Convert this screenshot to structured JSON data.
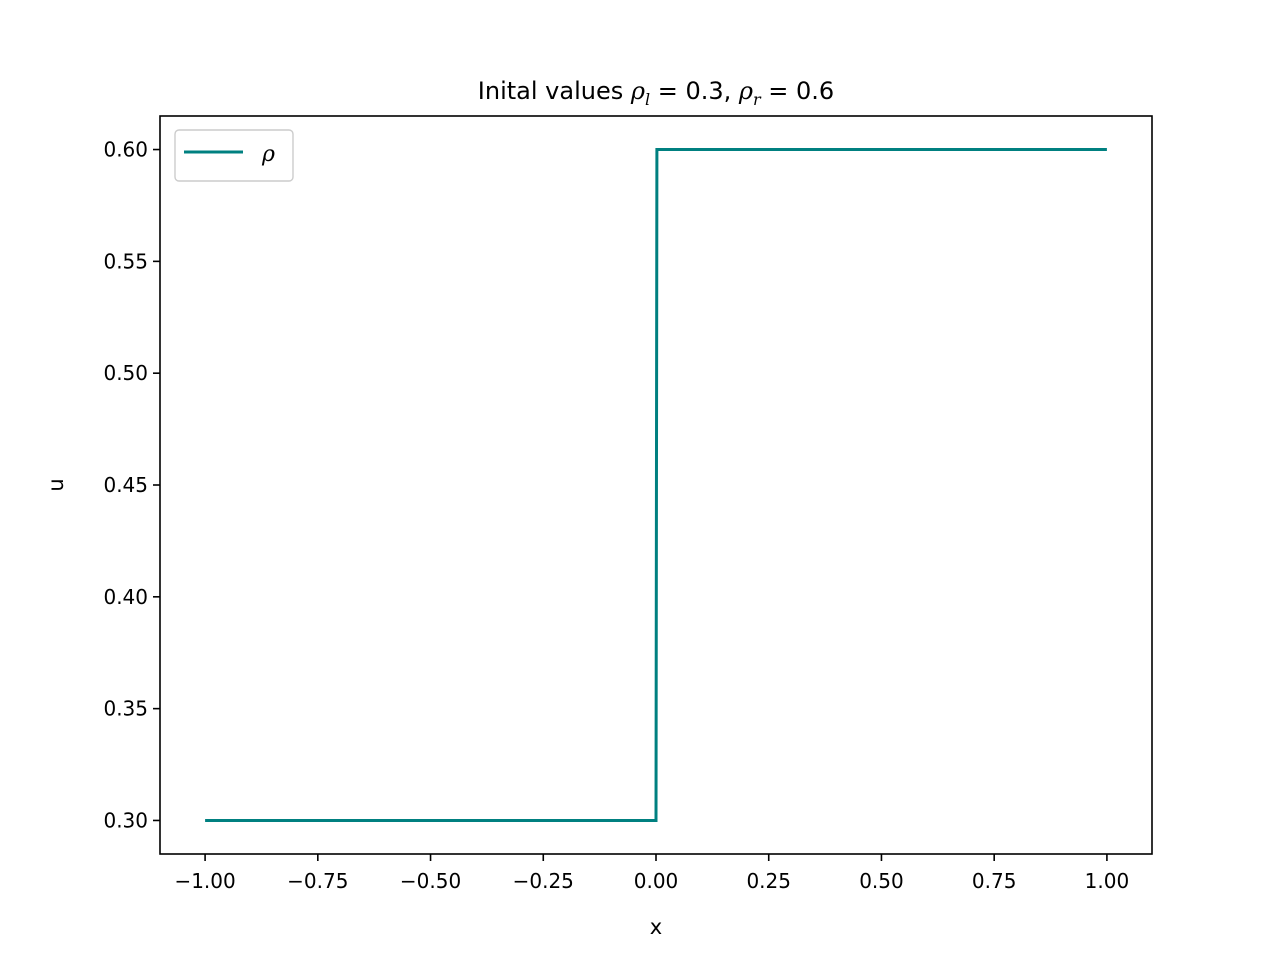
{
  "chart_data": {
    "type": "line",
    "title": {
      "prefix": "Inital values ",
      "left_symbol": "ρ",
      "left_sub": "l",
      "left_rest": " = 0.3, ",
      "right_symbol": "ρ",
      "right_sub": "r",
      "right_rest": " = 0.6"
    },
    "xlabel": "x",
    "ylabel": "u",
    "xlim": [
      -1.1,
      1.1
    ],
    "ylim": [
      0.285,
      0.615
    ],
    "xticks": [
      -1.0,
      -0.75,
      -0.5,
      -0.25,
      0.0,
      0.25,
      0.5,
      0.75,
      1.0
    ],
    "xtick_labels": [
      "−1.00",
      "−0.75",
      "−0.50",
      "−0.25",
      "0.00",
      "0.25",
      "0.50",
      "0.75",
      "1.00"
    ],
    "yticks": [
      0.3,
      0.35,
      0.4,
      0.45,
      0.5,
      0.55,
      0.6
    ],
    "ytick_labels": [
      "0.30",
      "0.35",
      "0.40",
      "0.45",
      "0.50",
      "0.55",
      "0.60"
    ],
    "grid": false,
    "legend_position": "top-left",
    "series": [
      {
        "name": "ρ",
        "color": "#008080",
        "x": [
          -1.0,
          0.0,
          0.002,
          1.0
        ],
        "y": [
          0.3,
          0.3,
          0.6,
          0.6
        ]
      }
    ]
  }
}
